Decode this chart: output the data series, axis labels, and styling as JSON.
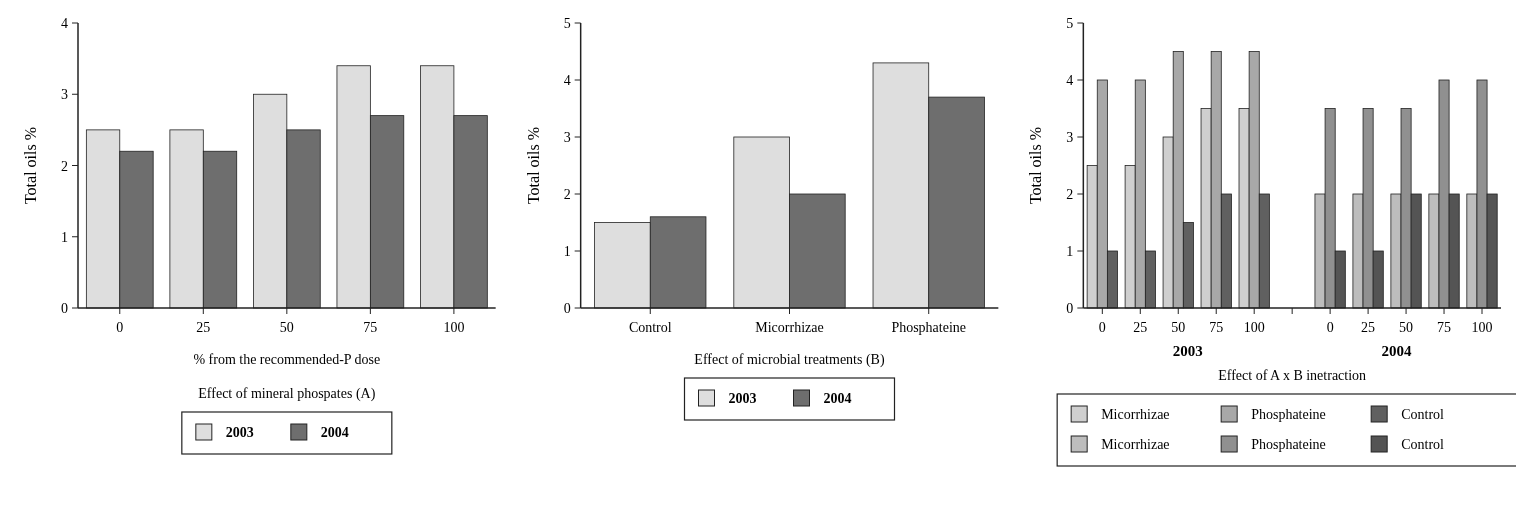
{
  "chart_data": [
    {
      "type": "bar",
      "title": "Effect of mineral phospates (A)",
      "xlabel": "% from the recommended-P dose",
      "ylabel": "Total oils %",
      "categories": [
        "0",
        "25",
        "50",
        "75",
        "100"
      ],
      "series": [
        {
          "name": "2003",
          "color": "#dedede",
          "values": [
            2.5,
            2.5,
            3.0,
            3.4,
            3.4
          ]
        },
        {
          "name": "2004",
          "color": "#6e6e6e",
          "values": [
            2.2,
            2.2,
            2.5,
            2.7,
            2.7
          ]
        }
      ],
      "ylim": [
        0,
        4
      ],
      "yticks": [
        0,
        1,
        2,
        3,
        4
      ],
      "grid": false,
      "legend": "bottom"
    },
    {
      "type": "bar",
      "xlabel": "Effect of microbial treatments  (B)",
      "ylabel": "Total oils %",
      "categories": [
        "Control",
        "Micorrhizae",
        "Phosphateine"
      ],
      "series": [
        {
          "name": "2003",
          "color": "#dedede",
          "values": [
            1.5,
            3.0,
            4.3
          ]
        },
        {
          "name": "2004",
          "color": "#6e6e6e",
          "values": [
            1.6,
            2.0,
            3.7
          ]
        }
      ],
      "ylim": [
        0,
        5
      ],
      "yticks": [
        0,
        1,
        2,
        3,
        4,
        5
      ],
      "grid": false,
      "legend": "bottom"
    },
    {
      "type": "bar",
      "xlabel": "Effect of A x B inetraction",
      "ylabel": "Total oils %",
      "annotations": [
        "2003",
        "2004"
      ],
      "categories": [
        "0",
        "25",
        "50",
        "75",
        "100",
        null,
        "0",
        "25",
        "50",
        "75",
        "100"
      ],
      "series": [
        {
          "name": "Micorrhizae",
          "color": "#cfcfcf",
          "values": [
            2.5,
            2.5,
            3.0,
            3.5,
            3.5,
            null,
            null,
            null,
            null,
            null,
            null
          ]
        },
        {
          "name": "Phosphateine",
          "color": "#a8a8a8",
          "values": [
            4.0,
            4.0,
            4.5,
            4.5,
            4.5,
            null,
            null,
            null,
            null,
            null,
            null
          ]
        },
        {
          "name": "Control",
          "color": "#606060",
          "values": [
            1.0,
            1.0,
            1.5,
            2.0,
            2.0,
            null,
            null,
            null,
            null,
            null,
            null
          ]
        },
        {
          "name": "Micorrhizae",
          "color": "#bdbdbd",
          "values": [
            null,
            null,
            null,
            null,
            null,
            null,
            2.0,
            2.0,
            2.0,
            2.0,
            2.0
          ]
        },
        {
          "name": "Phosphateine",
          "color": "#909090",
          "values": [
            null,
            null,
            null,
            null,
            null,
            null,
            3.5,
            3.5,
            3.5,
            4.0,
            4.0
          ]
        },
        {
          "name": "Control",
          "color": "#545454",
          "values": [
            null,
            null,
            null,
            null,
            null,
            null,
            1.0,
            1.0,
            2.0,
            2.0,
            2.0
          ]
        }
      ],
      "ylim": [
        0,
        5
      ],
      "yticks": [
        0,
        1,
        2,
        3,
        4,
        5
      ],
      "grid": false,
      "legend": "bottom"
    }
  ]
}
